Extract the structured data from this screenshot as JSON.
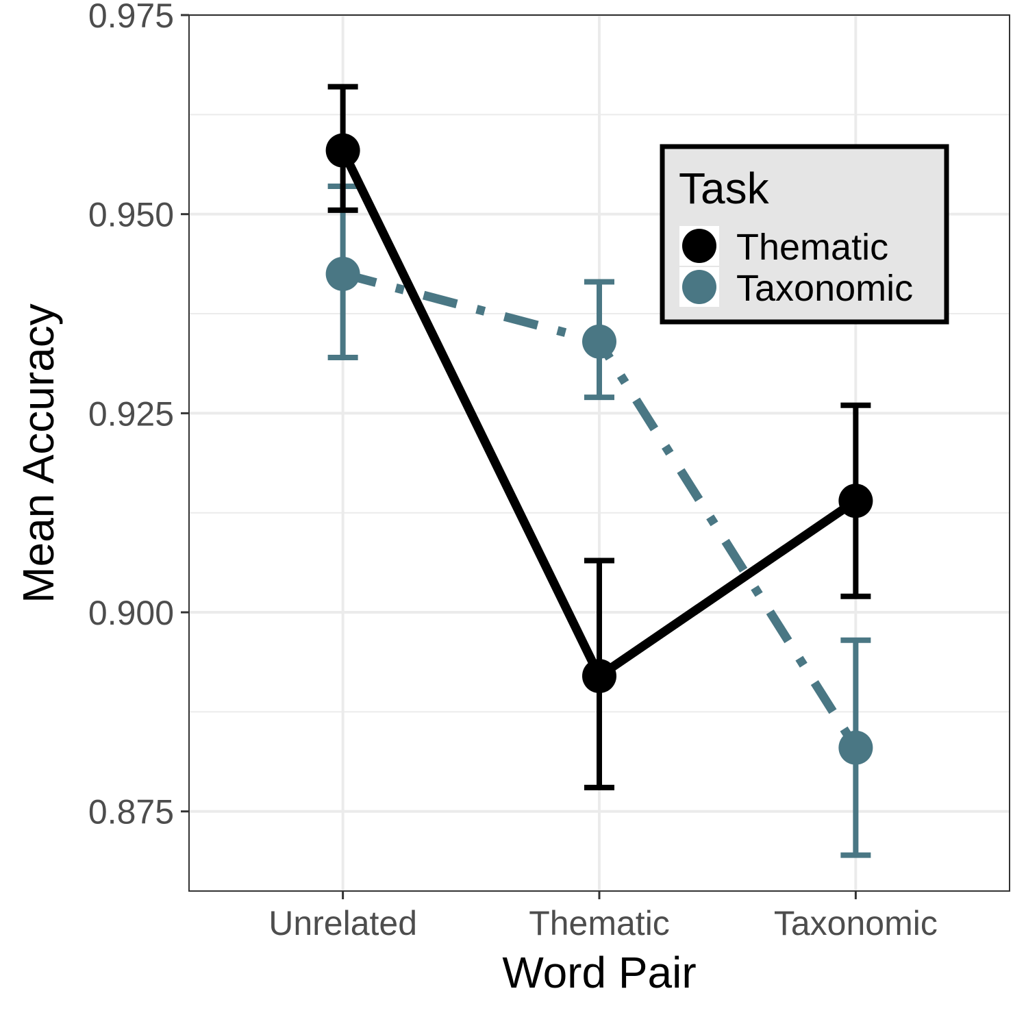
{
  "chart_data": {
    "type": "line",
    "xlabel": "Word Pair",
    "ylabel": "Mean Accuracy",
    "categories": [
      "Unrelated",
      "Thematic",
      "Taxonomic"
    ],
    "ylim": [
      0.865,
      0.975
    ],
    "yticks": [
      0.875,
      0.9,
      0.925,
      0.95,
      0.975
    ],
    "ytick_labels": [
      "0.875",
      "0.900",
      "0.925",
      "0.950",
      "0.975"
    ],
    "grid": true,
    "legend": {
      "title": "Task",
      "placement": "top-right"
    },
    "series": [
      {
        "name": "Thematic",
        "color": "#000000",
        "line_style": "solid",
        "values": [
          0.958,
          0.892,
          0.914
        ],
        "error_low": [
          0.9505,
          0.878,
          0.902
        ],
        "error_high": [
          0.966,
          0.9065,
          0.926
        ]
      },
      {
        "name": "Taxonomic",
        "color": "#4a7784",
        "line_style": "dashdot",
        "values": [
          0.9425,
          0.934,
          0.883
        ],
        "error_low": [
          0.932,
          0.927,
          0.8695
        ],
        "error_high": [
          0.9535,
          0.9415,
          0.8965
        ]
      }
    ]
  }
}
